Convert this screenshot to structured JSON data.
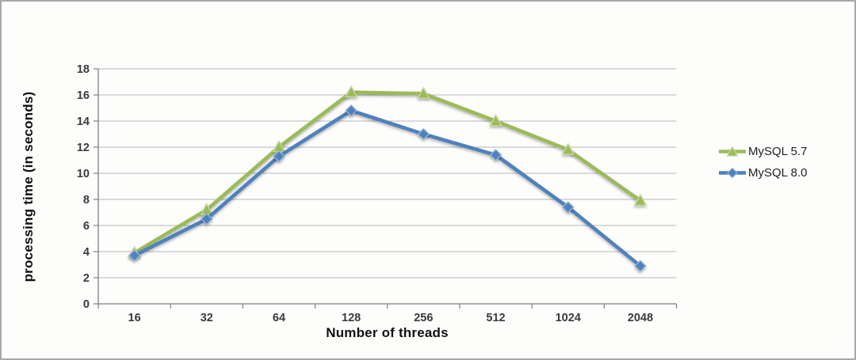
{
  "chart_data": {
    "type": "line",
    "title": "",
    "xlabel": "Number of threads",
    "ylabel": "processing time (in seconds)",
    "categories": [
      "16",
      "32",
      "64",
      "128",
      "256",
      "512",
      "1024",
      "2048"
    ],
    "series": [
      {
        "name": "MySQL 5.7",
        "color": "#9bbb59",
        "marker": "triangle",
        "marker_edge": "#c6d9a0",
        "values": [
          3.9,
          7.2,
          12.0,
          16.2,
          16.1,
          14.0,
          11.8,
          7.9
        ]
      },
      {
        "name": "MySQL 8.0",
        "color": "#4f81bd",
        "marker": "diamond",
        "marker_edge": "#95b3d7",
        "values": [
          3.7,
          6.5,
          11.3,
          14.8,
          13.0,
          11.4,
          7.4,
          2.9
        ]
      }
    ],
    "ylim": [
      0,
      18
    ],
    "ytick_step": 2,
    "yticks": [
      0,
      2,
      4,
      6,
      8,
      10,
      12,
      14,
      16,
      18
    ],
    "grid": true,
    "legend_position": "right",
    "grid_color": "#b8b8b8",
    "axis_color": "#7f7f7f",
    "tick_text_color": "#3a3a3a"
  }
}
